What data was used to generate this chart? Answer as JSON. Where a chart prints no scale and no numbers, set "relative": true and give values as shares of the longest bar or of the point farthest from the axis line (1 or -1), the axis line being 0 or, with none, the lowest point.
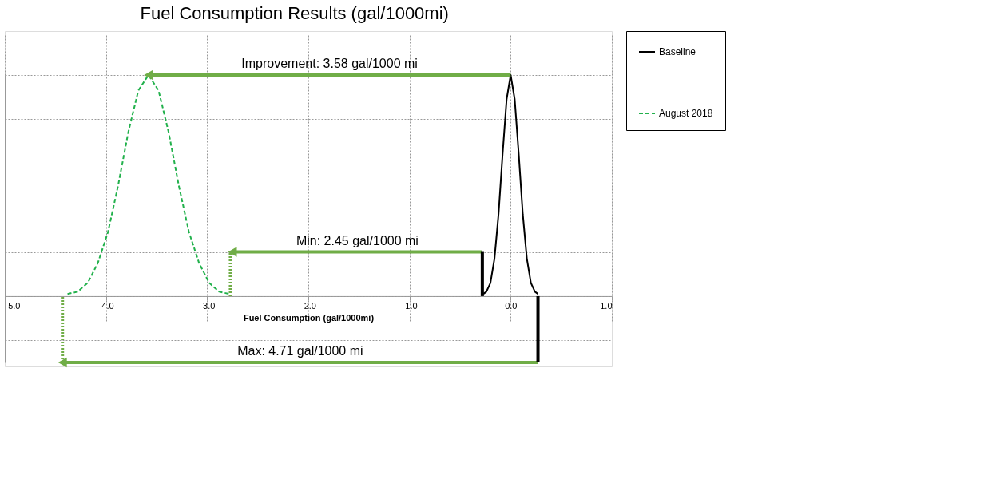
{
  "chart_data": {
    "type": "line",
    "title": "Fuel Consumption Results  (gal/1000mi)",
    "xlabel": "Fuel Consumption (gal/1000mi)",
    "relative": true,
    "xlim": [
      -5.0,
      1.0
    ],
    "xticks": [
      {
        "value": -5,
        "label": "-5.0"
      },
      {
        "value": -4,
        "label": "-4.0"
      },
      {
        "value": -3,
        "label": "-3.0"
      },
      {
        "value": -2,
        "label": "-2.0"
      },
      {
        "value": -1,
        "label": "-1.0"
      },
      {
        "value": 0,
        "label": "0.0"
      },
      {
        "value": 1,
        "label": "1.0"
      }
    ],
    "grid": true,
    "legend": "right",
    "series": [
      {
        "name": "Baseline",
        "color": "#000000",
        "line_style": "solid",
        "x": [
          -0.27,
          -0.24,
          -0.2,
          -0.16,
          -0.12,
          -0.08,
          -0.04,
          0,
          0.04,
          0.08,
          0.12,
          0.16,
          0.2,
          0.24,
          0.27
        ],
        "values": [
          0.01,
          0.02,
          0.06,
          0.17,
          0.37,
          0.64,
          0.89,
          1,
          0.89,
          0.64,
          0.37,
          0.17,
          0.06,
          0.02,
          0.01
        ]
      },
      {
        "name": "August 2018",
        "color": "#22b14c",
        "line_style": "dashed",
        "x": [
          -4.38,
          -4.28,
          -4.18,
          -4.08,
          -3.98,
          -3.88,
          -3.78,
          -3.68,
          -3.58,
          -3.48,
          -3.38,
          -3.28,
          -3.18,
          -3.08,
          -2.98,
          -2.88,
          -2.78
        ],
        "values": [
          0.01,
          0.02,
          0.06,
          0.15,
          0.29,
          0.5,
          0.74,
          0.93,
          1,
          0.93,
          0.74,
          0.5,
          0.29,
          0.15,
          0.06,
          0.02,
          0.01
        ]
      },
      {
        "color": "#70ad47",
        "line_style": "solid",
        "marker": "triangle",
        "x": [
          0,
          -3.58
        ],
        "values": [
          1,
          1
        ]
      },
      {
        "color": "#70ad47",
        "line_style": "solid",
        "marker": "triangle",
        "x": [
          -0.28,
          -2.75
        ],
        "values": [
          0.2,
          0.2
        ]
      },
      {
        "color": "#70ad47",
        "line_style": "solid",
        "marker": "triangle",
        "x": [
          0.27,
          -4.43
        ],
        "values": [
          -0.3,
          -0.3
        ]
      },
      {
        "color": "#000000",
        "line_style": "solid",
        "x": [
          -0.28,
          -0.28
        ],
        "values": [
          0,
          0.2
        ]
      },
      {
        "color": "#000000",
        "line_style": "solid",
        "x": [
          0.27,
          0.27
        ],
        "values": [
          -0.3,
          0
        ]
      },
      {
        "color": "#70ad47",
        "line_style": "dotted",
        "x": [
          -2.77,
          -2.77
        ],
        "values": [
          0,
          0.2
        ]
      },
      {
        "color": "#70ad47",
        "line_style": "dotted",
        "x": [
          -4.43,
          -4.43
        ],
        "values": [
          -0.3,
          0
        ]
      }
    ],
    "annotations": [
      "Improvement: 3.58 gal/1000 mi",
      "Min: 2.45 gal/1000 mi",
      "Max: 4.71 gal/1000 mi"
    ]
  }
}
